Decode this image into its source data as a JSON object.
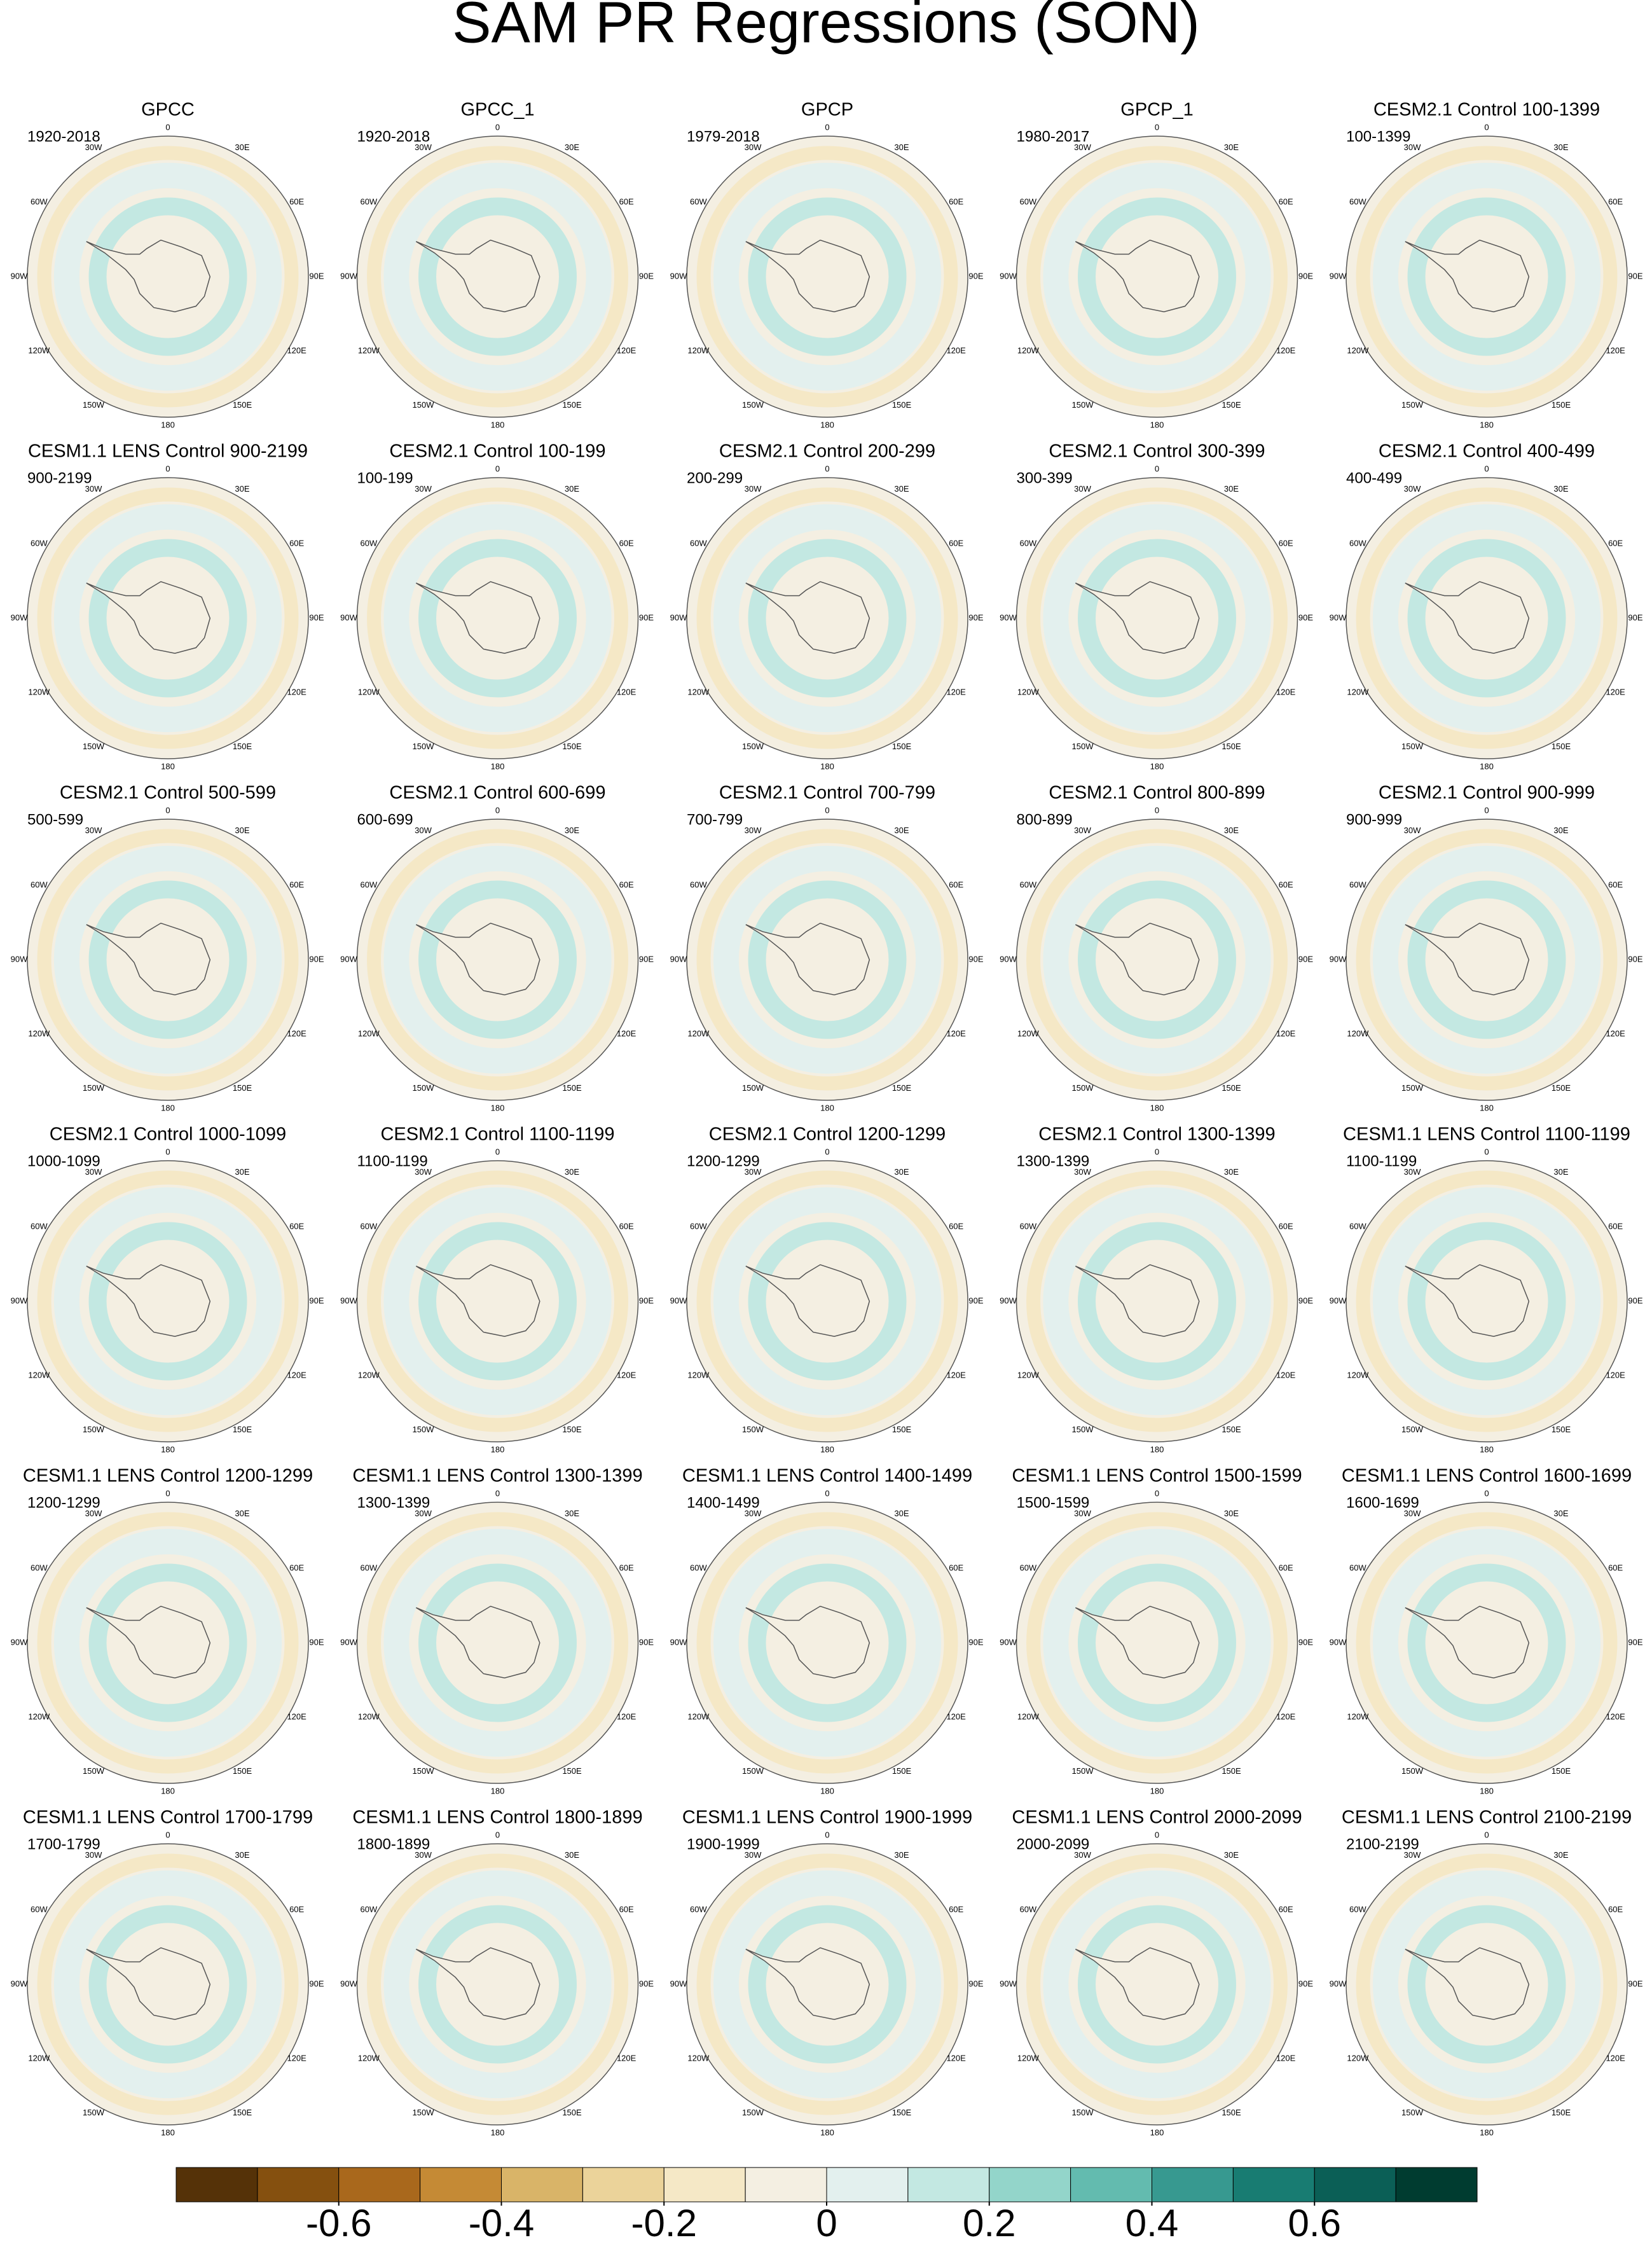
{
  "title": "SAM PR Regressions (SON)",
  "lon_labels": [
    "0",
    "30E",
    "60E",
    "90E",
    "120E",
    "150E",
    "180",
    "150W",
    "120W",
    "90W",
    "60W",
    "30W"
  ],
  "panels": [
    {
      "title": "GPCC",
      "period": "1920-2018"
    },
    {
      "title": "GPCC_1",
      "period": "1920-2018"
    },
    {
      "title": "GPCP",
      "period": "1979-2018"
    },
    {
      "title": "GPCP_1",
      "period": "1980-2017"
    },
    {
      "title": "CESM2.1 Control 100-1399",
      "period": "100-1399"
    },
    {
      "title": "CESM1.1 LENS Control 900-2199",
      "period": "900-2199"
    },
    {
      "title": "CESM2.1 Control 100-199",
      "period": "100-199"
    },
    {
      "title": "CESM2.1 Control 200-299",
      "period": "200-299"
    },
    {
      "title": "CESM2.1 Control 300-399",
      "period": "300-399"
    },
    {
      "title": "CESM2.1 Control 400-499",
      "period": "400-499"
    },
    {
      "title": "CESM2.1 Control 500-599",
      "period": "500-599"
    },
    {
      "title": "CESM2.1 Control 600-699",
      "period": "600-699"
    },
    {
      "title": "CESM2.1 Control 700-799",
      "period": "700-799"
    },
    {
      "title": "CESM2.1 Control 800-899",
      "period": "800-899"
    },
    {
      "title": "CESM2.1 Control 900-999",
      "period": "900-999"
    },
    {
      "title": "CESM2.1 Control 1000-1099",
      "period": "1000-1099"
    },
    {
      "title": "CESM2.1 Control 1100-1199",
      "period": "1100-1199"
    },
    {
      "title": "CESM2.1 Control 1200-1299",
      "period": "1200-1299"
    },
    {
      "title": "CESM2.1 Control 1300-1399",
      "period": "1300-1399"
    },
    {
      "title": "CESM1.1 LENS Control 1100-1199",
      "period": "1100-1199"
    },
    {
      "title": "CESM1.1 LENS Control 1200-1299",
      "period": "1200-1299"
    },
    {
      "title": "CESM1.1 LENS Control 1300-1399",
      "period": "1300-1399"
    },
    {
      "title": "CESM1.1 LENS Control 1400-1499",
      "period": "1400-1499"
    },
    {
      "title": "CESM1.1 LENS Control 1500-1599",
      "period": "1500-1599"
    },
    {
      "title": "CESM1.1 LENS Control 1600-1699",
      "period": "1600-1699"
    },
    {
      "title": "CESM1.1 LENS Control 1700-1799",
      "period": "1700-1799"
    },
    {
      "title": "CESM1.1 LENS Control 1800-1899",
      "period": "1800-1899"
    },
    {
      "title": "CESM1.1 LENS Control 1900-1999",
      "period": "1900-1999"
    },
    {
      "title": "CESM1.1 LENS Control 2000-2099",
      "period": "2000-2099"
    },
    {
      "title": "CESM1.1 LENS Control 2100-2199",
      "period": "2100-2199"
    }
  ],
  "colorbar": {
    "lim": [
      -0.8,
      0.8
    ],
    "ticks": [
      -0.6,
      -0.4,
      -0.2,
      0,
      0.2,
      0.4,
      0.6
    ],
    "colors": [
      "#553208",
      "#85500f",
      "#a9681c",
      "#c58a35",
      "#d9b468",
      "#ebd39a",
      "#f5e8c6",
      "#f4efe2",
      "#e3f0ee",
      "#c3e8e2",
      "#93d5ca",
      "#63bbaf",
      "#379990",
      "#187c72",
      "#0b5f56",
      "#003c30"
    ]
  }
}
